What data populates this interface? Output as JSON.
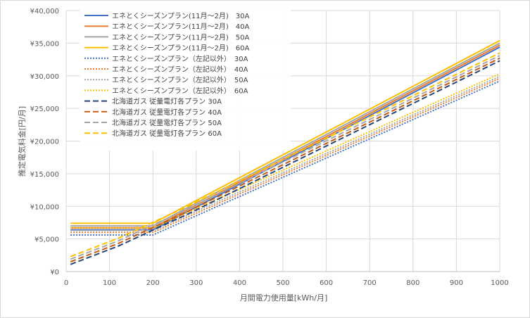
{
  "chart_data": {
    "type": "line",
    "xlabel": "月間電力使用量[kWh/月]",
    "ylabel": "推定電気料金[円/月]",
    "xlim": [
      0,
      1000
    ],
    "ylim": [
      0,
      40000
    ],
    "x_ticks": [
      "0",
      "100",
      "200",
      "300",
      "400",
      "500",
      "600",
      "700",
      "800",
      "900",
      "1000"
    ],
    "y_ticks": [
      "¥0",
      "¥5,000",
      "¥10,000",
      "¥15,000",
      "¥20,000",
      "¥25,000",
      "¥30,000",
      "¥35,000",
      "¥40,000"
    ],
    "grid": "horizontal",
    "legend_position": "top-left",
    "series": [
      {
        "name": "エネとくシーズンプラン(11月～2月)　30A",
        "color": "#4472c4",
        "style": "solid",
        "x": [
          10,
          200,
          1000
        ],
        "values": [
          6400,
          6400,
          34400
        ]
      },
      {
        "name": "エネとくシーズンプラン(11月～2月)　40A",
        "color": "#ed7d31",
        "style": "solid",
        "x": [
          10,
          200,
          1000
        ],
        "values": [
          6700,
          6700,
          34700
        ]
      },
      {
        "name": "エネとくシーズンプラン(11月～2月)　50A",
        "color": "#a5a5a5",
        "style": "solid",
        "x": [
          10,
          200,
          1000
        ],
        "values": [
          7000,
          7000,
          35000
        ]
      },
      {
        "name": "エネとくシーズンプラン(11月～2月)　60A",
        "color": "#ffc000",
        "style": "solid",
        "x": [
          10,
          200,
          1000
        ],
        "values": [
          7400,
          7400,
          35400
        ]
      },
      {
        "name": "エネとくシーズンプラン（左記以外）　30A",
        "color": "#4472c4",
        "style": "dotted",
        "x": [
          10,
          200,
          1000
        ],
        "values": [
          5600,
          5600,
          29200
        ]
      },
      {
        "name": "エネとくシーズンプラン（左記以外）　40A",
        "color": "#ed7d31",
        "style": "dotted",
        "x": [
          10,
          200,
          1000
        ],
        "values": [
          6000,
          6000,
          29600
        ]
      },
      {
        "name": "エネとくシーズンプラン（左記以外）　50A",
        "color": "#a5a5a5",
        "style": "dotted",
        "x": [
          10,
          200,
          1000
        ],
        "values": [
          6300,
          6300,
          29900
        ]
      },
      {
        "name": "エネとくシーズンプラン（左記以外）　60A",
        "color": "#ffc000",
        "style": "dotted",
        "x": [
          10,
          200,
          1000
        ],
        "values": [
          6700,
          6700,
          30300
        ]
      },
      {
        "name": "北海道ガス 従量電灯各プラン 30A",
        "color": "#264478",
        "style": "dashed",
        "x": [
          10,
          120,
          280,
          1000
        ],
        "values": [
          1100,
          3900,
          8800,
          32300
        ]
      },
      {
        "name": "北海道ガス 従量電灯各プラン 40A",
        "color": "#c55a11",
        "style": "dashed",
        "x": [
          10,
          120,
          280,
          1000
        ],
        "values": [
          1500,
          4300,
          9200,
          32700
        ]
      },
      {
        "name": "北海道ガス 従量電灯各プラン 50A",
        "color": "#a5a5a5",
        "style": "dashed",
        "x": [
          10,
          120,
          280,
          1000
        ],
        "values": [
          1900,
          4700,
          9600,
          33100
        ]
      },
      {
        "name": "北海道ガス 従量電灯各プラン 60A",
        "color": "#ffc000",
        "style": "dashed",
        "x": [
          10,
          120,
          280,
          1000
        ],
        "values": [
          2300,
          5100,
          10000,
          33500
        ]
      }
    ]
  }
}
